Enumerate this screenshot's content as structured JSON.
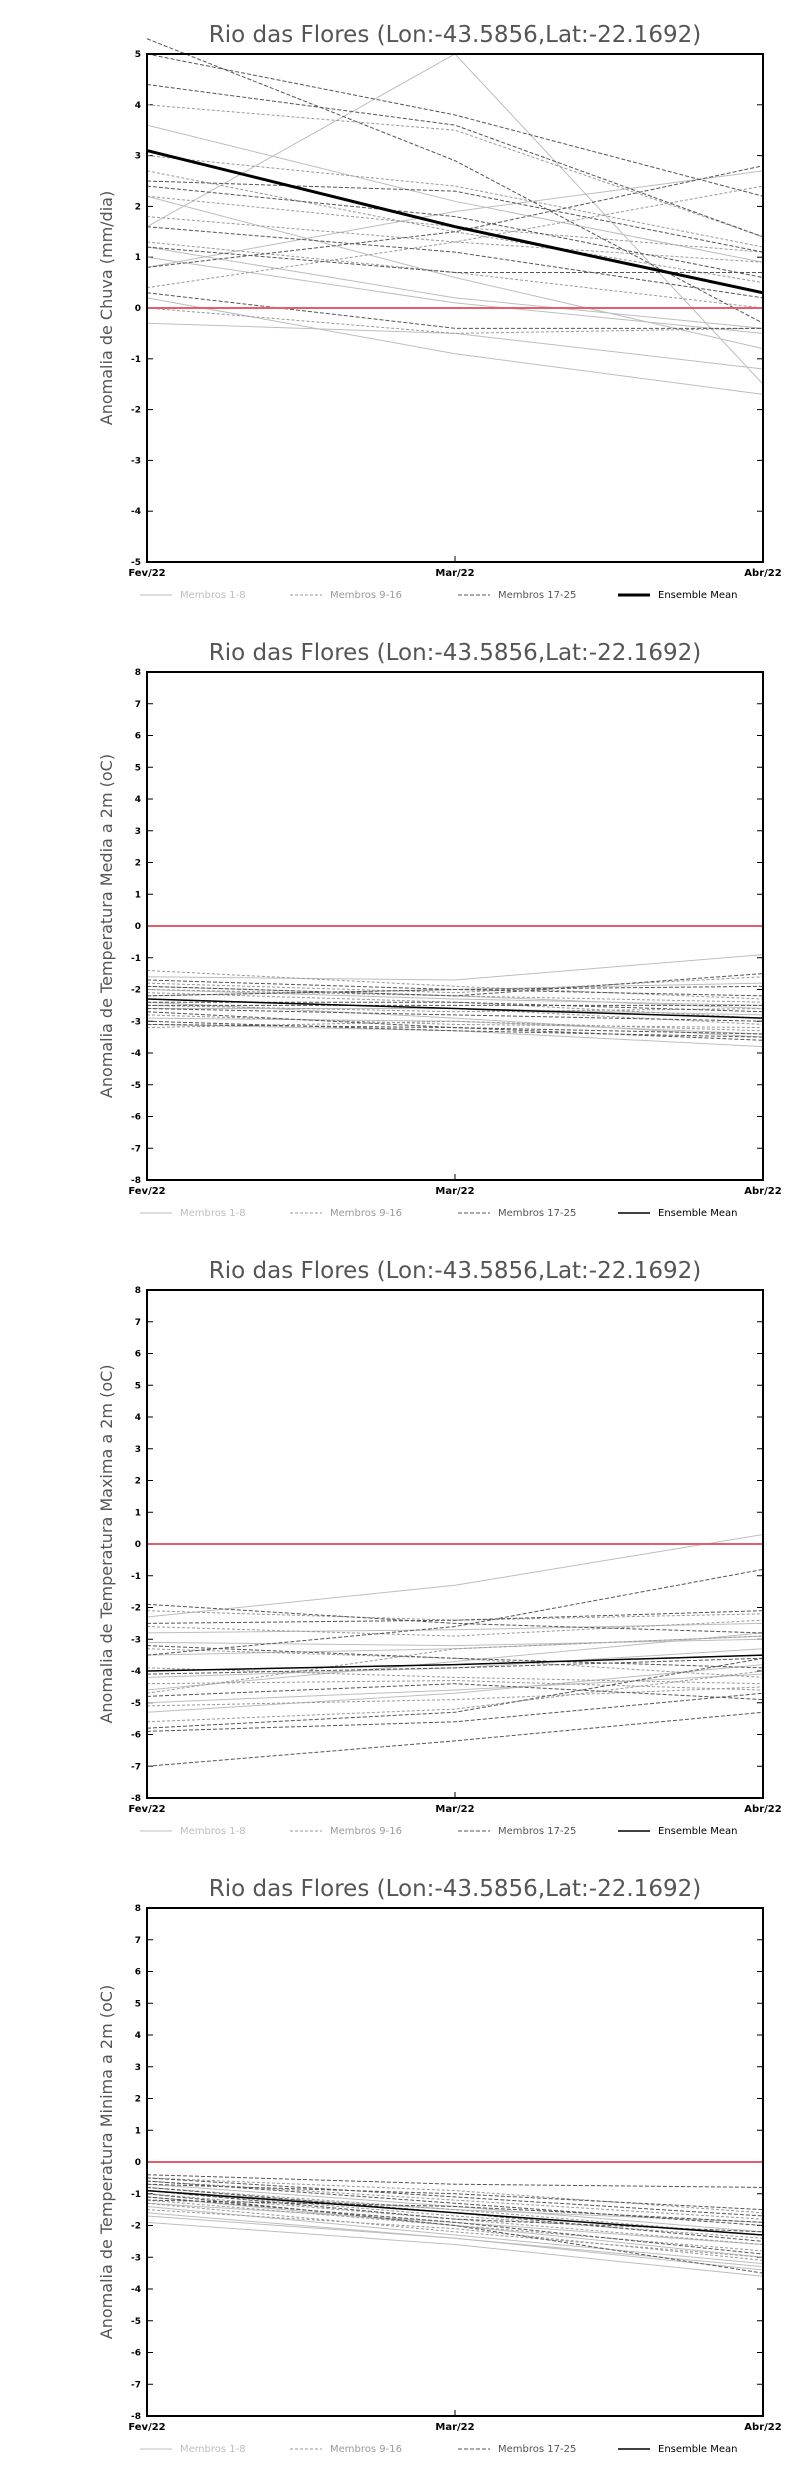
{
  "colors": {
    "member_light": "#bdbdbd",
    "member_mid": "#9a9a9a",
    "member_dark": "#555555",
    "mean": "#000000",
    "zero_line": "#e06070",
    "frame": "#000000",
    "title": "#555555"
  },
  "chart_data": [
    {
      "type": "line",
      "title": "Rio das Flores (Lon:-43.5856,Lat:-22.1692)",
      "ylabel": "Anomalia de Chuva (mm/dia)",
      "categories": [
        "Fev/22",
        "Mar/22",
        "Abr/22"
      ],
      "ylim": [
        -5,
        5
      ],
      "yticks": [
        "5",
        "4",
        "3",
        "2",
        "1",
        "0",
        "-1",
        "-2",
        "-3",
        "-4",
        "-5"
      ],
      "legend": [
        "Membros 1-8",
        "Membros 9-16",
        "Membros 17-25",
        "Ensemble Mean"
      ],
      "mean_width": 3,
      "mean": [
        3.1,
        1.6,
        0.3
      ],
      "groups": [
        {
          "name": "Membros 1-8",
          "series": [
            [
              3.6,
              2.1,
              0.9
            ],
            [
              2.2,
              0.6,
              -0.8
            ],
            [
              0.2,
              -0.9,
              -1.7
            ],
            [
              1.2,
              0.2,
              -0.4
            ],
            [
              -0.3,
              -0.5,
              -1.2
            ],
            [
              1.6,
              5.0,
              -1.5
            ],
            [
              0.8,
              1.9,
              2.7
            ],
            [
              1.0,
              0.1,
              -0.5
            ]
          ]
        },
        {
          "name": "Membros 9-16",
          "series": [
            [
              4.0,
              3.5,
              1.4
            ],
            [
              2.7,
              1.5,
              0.5
            ],
            [
              0.4,
              1.3,
              2.4
            ],
            [
              1.3,
              0.7,
              0.0
            ],
            [
              3.0,
              2.4,
              1.2
            ],
            [
              0.0,
              -0.5,
              -0.4
            ],
            [
              2.2,
              1.6,
              1.1
            ],
            [
              1.8,
              1.3,
              0.9
            ]
          ]
        },
        {
          "name": "Membros 17-25",
          "series": [
            [
              4.4,
              3.6,
              1.4
            ],
            [
              5.3,
              2.9,
              -0.3
            ],
            [
              2.5,
              2.3,
              1.1
            ],
            [
              0.8,
              1.5,
              2.8
            ],
            [
              0.3,
              -0.4,
              -0.4
            ],
            [
              1.6,
              1.1,
              0.2
            ],
            [
              2.4,
              1.8,
              0.6
            ],
            [
              5.0,
              3.8,
              2.2
            ],
            [
              1.2,
              0.7,
              0.7
            ]
          ]
        }
      ]
    },
    {
      "type": "line",
      "title": "Rio das Flores (Lon:-43.5856,Lat:-22.1692)",
      "ylabel": "Anomalia de Temperatura Media a 2m (oC)",
      "categories": [
        "Fev/22",
        "Mar/22",
        "Abr/22"
      ],
      "ylim": [
        -8,
        8
      ],
      "yticks": [
        "8",
        "7",
        "6",
        "5",
        "4",
        "3",
        "2",
        "1",
        "0",
        "-1",
        "-2",
        "-3",
        "-4",
        "-5",
        "-6",
        "-7",
        "-8"
      ],
      "legend": [
        "Membros 1-8",
        "Membros 9-16",
        "Membros 17-25",
        "Ensemble Mean"
      ],
      "mean_width": 1.5,
      "mean": [
        -2.3,
        -2.6,
        -2.9
      ],
      "groups": [
        {
          "name": "Membros 1-8",
          "series": [
            [
              -1.6,
              -1.7,
              -0.9
            ],
            [
              -2.0,
              -2.3,
              -2.5
            ],
            [
              -2.9,
              -3.0,
              -3.4
            ],
            [
              -1.9,
              -2.2,
              -2.6
            ],
            [
              -2.4,
              -2.9,
              -3.5
            ],
            [
              -3.1,
              -3.3,
              -3.8
            ],
            [
              -2.6,
              -2.6,
              -2.8
            ],
            [
              -2.2,
              -2.0,
              -1.8
            ]
          ]
        },
        {
          "name": "Membros 9-16",
          "series": [
            [
              -1.4,
              -1.9,
              -2.3
            ],
            [
              -2.1,
              -2.4,
              -2.9
            ],
            [
              -2.8,
              -3.1,
              -3.2
            ],
            [
              -1.8,
              -2.1,
              -1.6
            ],
            [
              -2.3,
              -2.6,
              -3.1
            ],
            [
              -3.2,
              -3.0,
              -3.3
            ],
            [
              -2.5,
              -2.7,
              -2.6
            ],
            [
              -2.0,
              -2.2,
              -2.4
            ]
          ]
        },
        {
          "name": "Membros 17-25",
          "series": [
            [
              -1.9,
              -2.2,
              -1.5
            ],
            [
              -2.5,
              -2.5,
              -2.5
            ],
            [
              -2.7,
              -3.2,
              -3.6
            ],
            [
              -3.0,
              -3.3,
              -3.5
            ],
            [
              -2.2,
              -2.0,
              -1.9
            ],
            [
              -1.7,
              -2.0,
              -2.2
            ],
            [
              -2.6,
              -2.8,
              -3.0
            ],
            [
              -3.1,
              -3.2,
              -3.4
            ],
            [
              -2.4,
              -2.4,
              -2.7
            ]
          ]
        }
      ]
    },
    {
      "type": "line",
      "title": "Rio das Flores (Lon:-43.5856,Lat:-22.1692)",
      "ylabel": "Anomalia de Temperatura Maxima a 2m (oC)",
      "categories": [
        "Fev/22",
        "Mar/22",
        "Abr/22"
      ],
      "ylim": [
        -8,
        8
      ],
      "yticks": [
        "8",
        "7",
        "6",
        "5",
        "4",
        "3",
        "2",
        "1",
        "0",
        "-1",
        "-2",
        "-3",
        "-4",
        "-5",
        "-6",
        "-7",
        "-8"
      ],
      "legend": [
        "Membros 1-8",
        "Membros 9-16",
        "Membros 17-25",
        "Ensemble Mean"
      ],
      "mean_width": 1.5,
      "mean": [
        -4.0,
        -3.8,
        -3.5
      ],
      "groups": [
        {
          "name": "Membros 1-8",
          "series": [
            [
              -2.3,
              -1.3,
              0.3
            ],
            [
              -3.5,
              -3.3,
              -2.9
            ],
            [
              -5.3,
              -4.7,
              -3.8
            ],
            [
              -4.2,
              -3.9,
              -3.3
            ],
            [
              -2.8,
              -2.7,
              -2.5
            ],
            [
              -4.6,
              -3.7,
              -2.8
            ],
            [
              -3.1,
              -3.2,
              -3.0
            ],
            [
              -5.0,
              -4.6,
              -4.1
            ]
          ]
        },
        {
          "name": "Membros 9-16",
          "series": [
            [
              -2.1,
              -2.4,
              -2.2
            ],
            [
              -3.9,
              -4.2,
              -4.4
            ],
            [
              -4.7,
              -3.3,
              -2.9
            ],
            [
              -5.6,
              -5.2,
              -4.0
            ],
            [
              -3.3,
              -3.6,
              -4.2
            ],
            [
              -2.6,
              -2.9,
              -2.4
            ],
            [
              -4.4,
              -4.3,
              -4.6
            ],
            [
              -5.1,
              -4.9,
              -4.5
            ]
          ]
        },
        {
          "name": "Membros 17-25",
          "series": [
            [
              -1.9,
              -2.5,
              -2.8
            ],
            [
              -3.5,
              -2.6,
              -0.8
            ],
            [
              -7.0,
              -6.2,
              -5.3
            ],
            [
              -5.8,
              -5.3,
              -3.6
            ],
            [
              -4.8,
              -4.4,
              -4.9
            ],
            [
              -2.5,
              -2.4,
              -2.1
            ],
            [
              -5.9,
              -5.6,
              -4.7
            ],
            [
              -3.2,
              -3.6,
              -3.9
            ],
            [
              -4.1,
              -3.9,
              -3.6
            ]
          ]
        }
      ]
    },
    {
      "type": "line",
      "title": "Rio das Flores (Lon:-43.5856,Lat:-22.1692)",
      "ylabel": "Anomalia de Temperatura Minima a 2m (oC)",
      "categories": [
        "Fev/22",
        "Mar/22",
        "Abr/22"
      ],
      "ylim": [
        -8,
        8
      ],
      "yticks": [
        "8",
        "7",
        "6",
        "5",
        "4",
        "3",
        "2",
        "1",
        "0",
        "-1",
        "-2",
        "-3",
        "-4",
        "-5",
        "-6",
        "-7",
        "-8"
      ],
      "legend": [
        "Membros 1-8",
        "Membros 9-16",
        "Membros 17-25",
        "Ensemble Mean"
      ],
      "mean_width": 1.5,
      "mean": [
        -0.9,
        -1.6,
        -2.3
      ],
      "groups": [
        {
          "name": "Membros 1-8",
          "series": [
            [
              -1.4,
              -2.3,
              -3.2
            ],
            [
              -1.9,
              -2.6,
              -3.6
            ],
            [
              -1.1,
              -2.0,
              -3.0
            ],
            [
              -0.9,
              -1.5,
              -1.9
            ],
            [
              -1.6,
              -2.4,
              -3.4
            ],
            [
              -1.3,
              -1.9,
              -2.6
            ],
            [
              -0.7,
              -1.4,
              -2.2
            ],
            [
              -1.7,
              -2.4,
              -3.3
            ]
          ]
        },
        {
          "name": "Membros 9-16",
          "series": [
            [
              -0.6,
              -1.2,
              -1.8
            ],
            [
              -1.0,
              -1.8,
              -2.6
            ],
            [
              -0.8,
              -1.5,
              -2.3
            ],
            [
              -1.2,
              -2.0,
              -2.8
            ],
            [
              -0.5,
              -0.9,
              -1.6
            ],
            [
              -1.5,
              -2.1,
              -3.1
            ],
            [
              -0.9,
              -1.7,
              -2.4
            ],
            [
              -1.3,
              -2.2,
              -3.0
            ]
          ]
        },
        {
          "name": "Membros 17-25",
          "series": [
            [
              -0.4,
              -0.7,
              -0.8
            ],
            [
              -0.6,
              -1.3,
              -2.0
            ],
            [
              -0.9,
              -1.8,
              -2.2
            ],
            [
              -0.7,
              -1.0,
              -1.5
            ],
            [
              -1.1,
              -1.9,
              -2.9
            ],
            [
              -0.5,
              -1.1,
              -1.7
            ],
            [
              -1.0,
              -2.0,
              -3.5
            ],
            [
              -0.8,
              -1.6,
              -2.5
            ],
            [
              -1.2,
              -1.4,
              -1.9
            ]
          ]
        }
      ]
    }
  ]
}
